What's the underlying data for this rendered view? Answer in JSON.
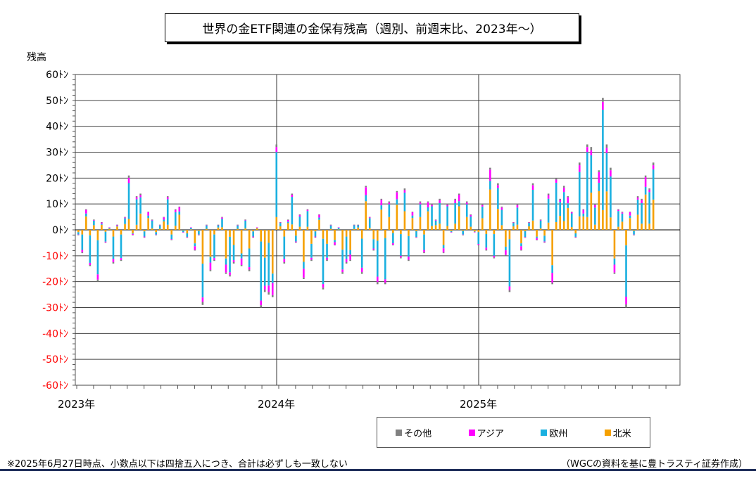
{
  "title": "世界の金ETF関連の金保有残高（週別、前週末比、2023年〜）",
  "footnote": "※2025年6月27日時点、小数点以下は四捨五入につき、合計は必ずしも一致しない",
  "source": "（WGCの資料を基に豊トラスティ証券作成）",
  "legend": [
    {
      "label": "その他",
      "color": "#808080"
    },
    {
      "label": "アジア",
      "color": "#ff00ff"
    },
    {
      "label": "欧州",
      "color": "#1ab0e0"
    },
    {
      "label": "北米",
      "color": "#f5a000"
    }
  ],
  "chart_data": {
    "type": "bar",
    "stacked": true,
    "ylabel": "残高",
    "ylim": [
      -60,
      60
    ],
    "y_ticks": [
      "60ﾄﾝ",
      "50ﾄﾝ",
      "40ﾄﾝ",
      "30ﾄﾝ",
      "20ﾄﾝ",
      "10ﾄﾝ",
      "0ﾄﾝ",
      "-10ﾄﾝ",
      "-20ﾄﾝ",
      "-30ﾄﾝ",
      "-40ﾄﾝ",
      "-50ﾄﾝ",
      "-60ﾄﾝ"
    ],
    "x_labels": [
      "2023年",
      "2024年",
      "2025年"
    ],
    "negative_tick_color": "#ff0000",
    "grid": true,
    "series_names": [
      "その他",
      "アジア",
      "欧州",
      "北米"
    ],
    "weekly_net_totals": [
      -2,
      -9,
      8,
      -14,
      4,
      -20,
      3,
      -5,
      1,
      -13,
      2,
      -12,
      5,
      21,
      -2,
      13,
      14,
      -3,
      7,
      4,
      -2,
      2,
      5,
      13,
      -4,
      8,
      9,
      -1,
      -3,
      1,
      -8,
      -2,
      -29,
      2,
      -16,
      -12,
      2,
      5,
      -17,
      -18,
      -13,
      2,
      -14,
      4,
      -16,
      -3,
      1,
      -30,
      -24,
      -25,
      -26,
      33,
      3,
      -13,
      4,
      14,
      -5,
      6,
      -19,
      8,
      -12,
      -3,
      6,
      -23,
      -12,
      2,
      -6,
      1,
      -17,
      -13,
      -12,
      2,
      2,
      -17,
      17,
      5,
      -8,
      -21,
      12,
      -21,
      11,
      -6,
      15,
      -11,
      16,
      -12,
      7,
      -3,
      11,
      -9,
      11,
      10,
      4,
      12,
      -9,
      10,
      -1,
      12,
      14,
      -2,
      11,
      6,
      -1,
      -6,
      10,
      -8,
      24,
      -11,
      18,
      9,
      -10,
      -24,
      3,
      10,
      -8,
      -3,
      3,
      18,
      -4,
      4,
      -5,
      14,
      -21,
      20,
      12,
      17,
      13,
      7,
      -3,
      26,
      8,
      33,
      32,
      10,
      23,
      51,
      33,
      24,
      -17,
      8,
      7,
      -30,
      7,
      -2,
      13,
      12,
      21,
      16,
      26
    ]
  }
}
